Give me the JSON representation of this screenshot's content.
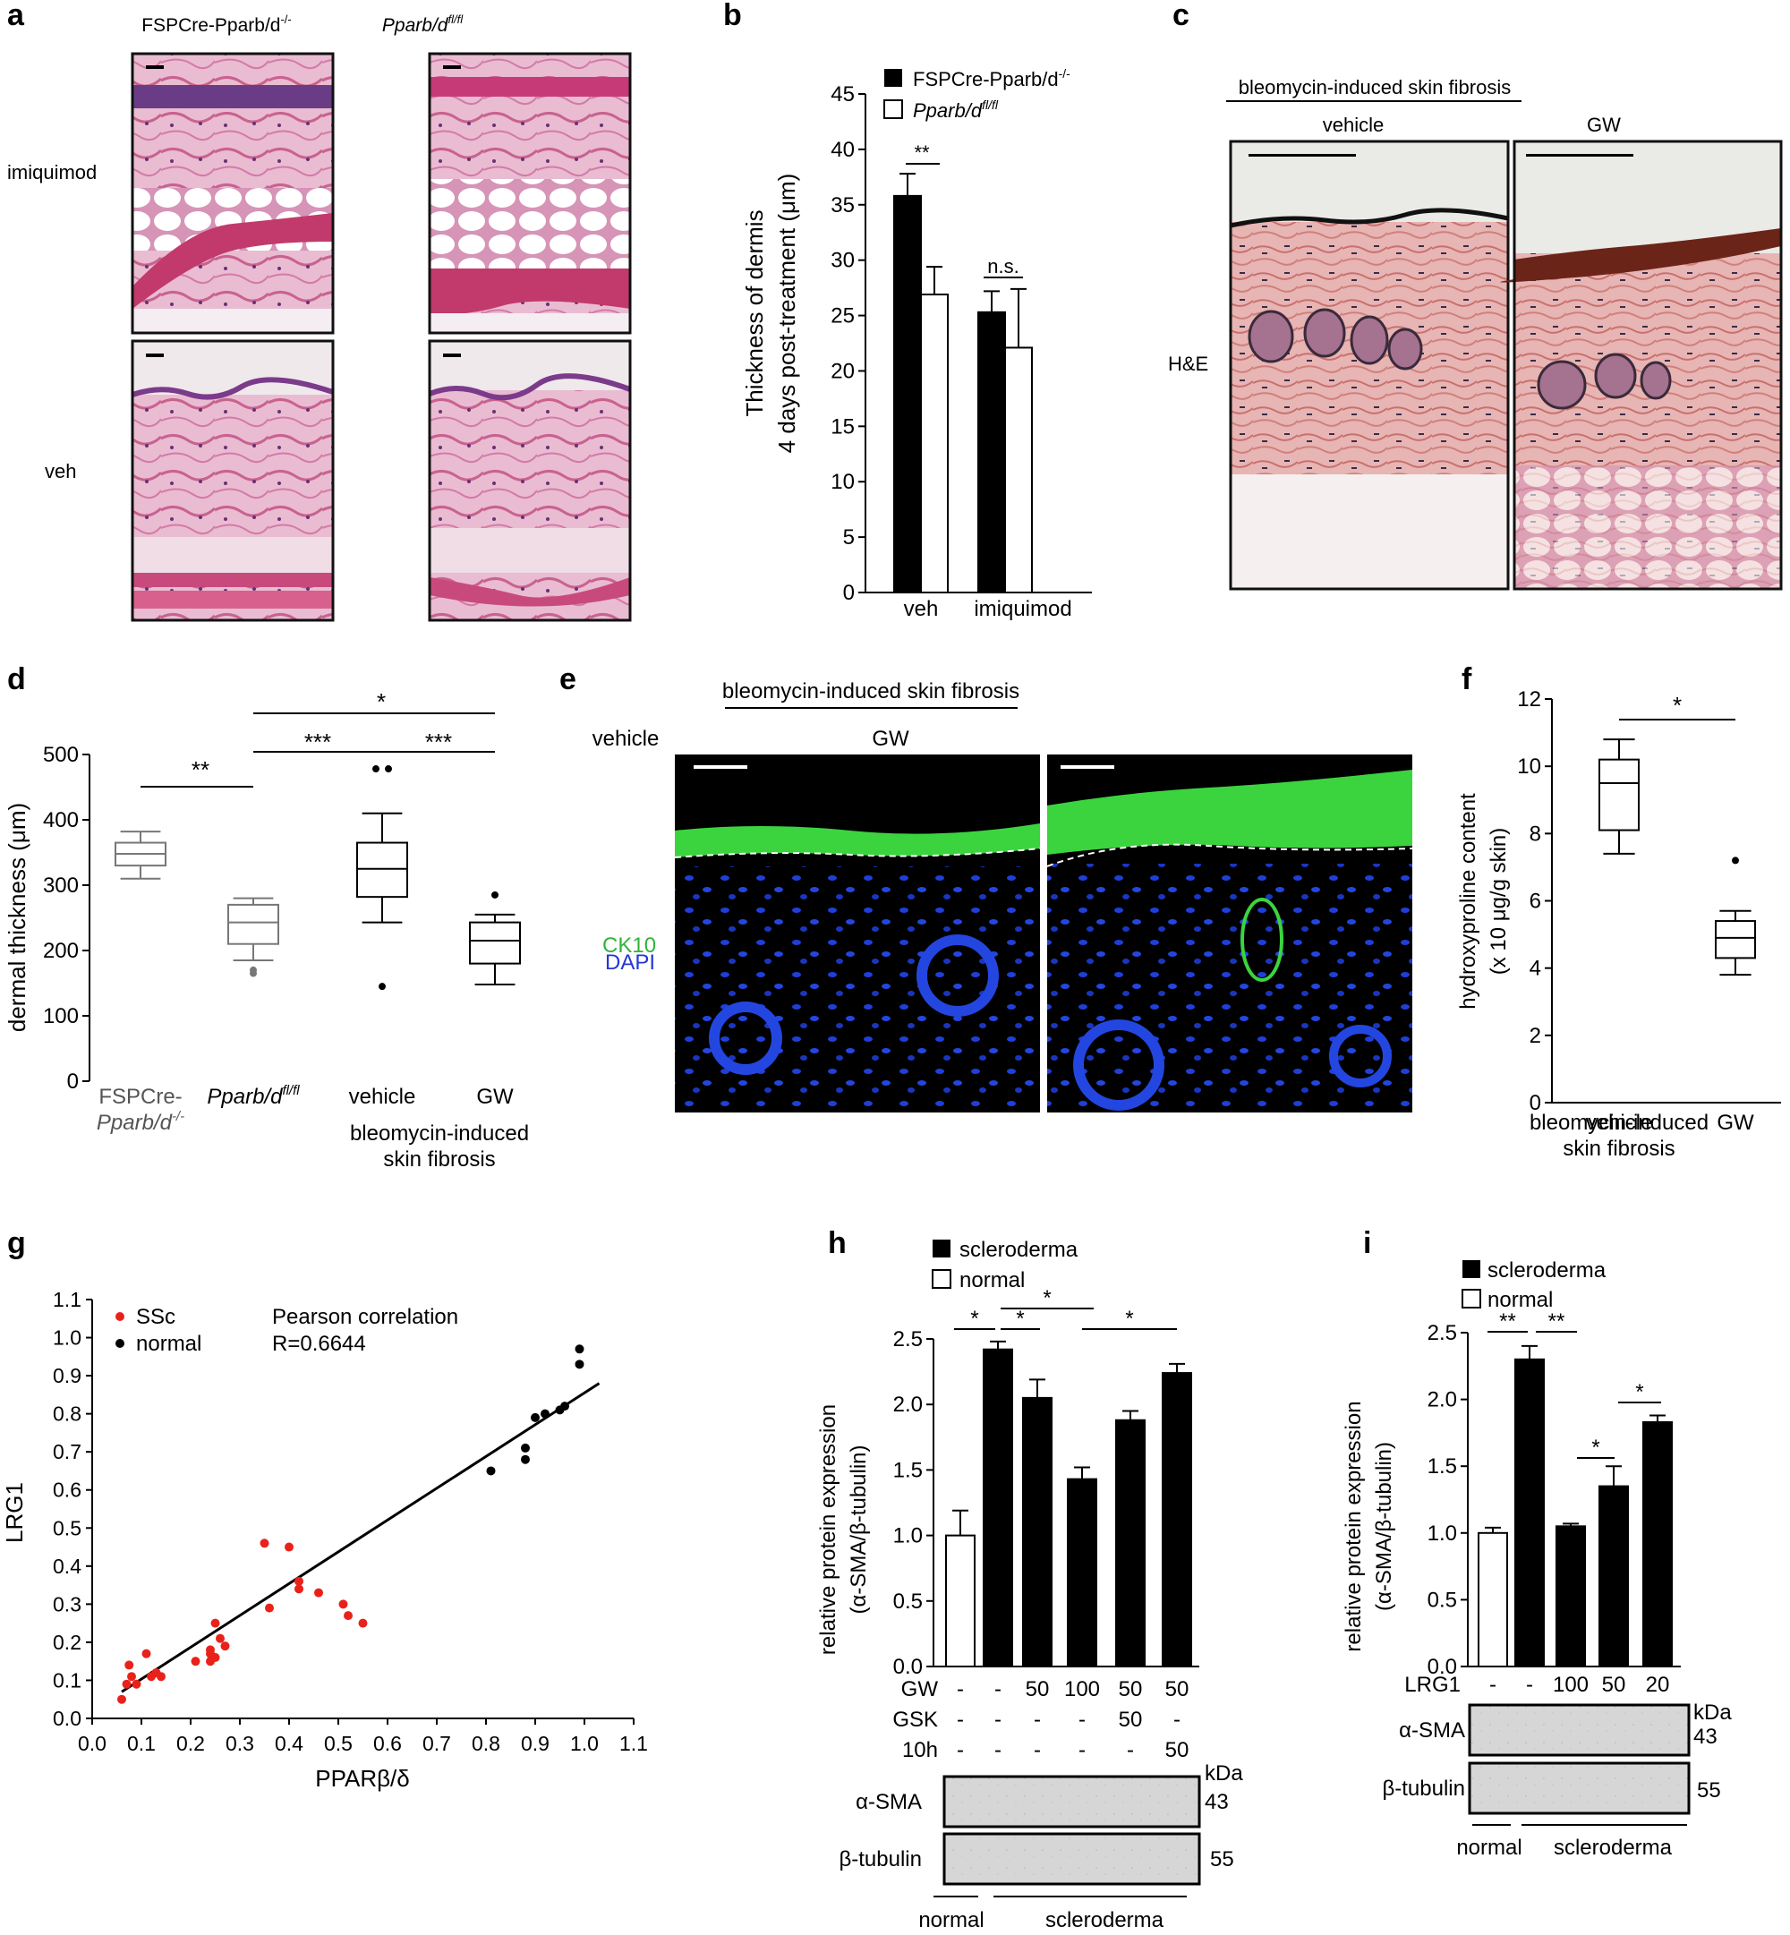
{
  "panels": {
    "a": {
      "letter": "a",
      "col_labels": [
        "FSPCre-Pparb/d",
        "Pparb/d"
      ],
      "col_sup": [
        "-/-",
        "fl/fl"
      ],
      "row_labels": [
        "imiquimod",
        "veh"
      ]
    },
    "b": {
      "letter": "b",
      "legend": [
        "FSPCre-Pparb/d",
        "Pparb/d"
      ],
      "legend_sup": [
        "-/-",
        "fl/fl"
      ],
      "annotations": [
        "**",
        "n.s."
      ]
    },
    "c": {
      "letter": "c",
      "title": "bleomycin-induced skin fibrosis",
      "col_labels": [
        "vehicle",
        "GW"
      ],
      "row_label": "H&E"
    },
    "d": {
      "letter": "d",
      "group_labels": [
        "FSPCre-",
        "Pparb/d",
        "Pparb/d",
        "vehicle",
        "GW"
      ],
      "group_sups": [
        "-/-",
        "fl/fl"
      ],
      "bottom_label": [
        "bleomycin-induced",
        "skin fibrosis"
      ],
      "sig": [
        "**",
        "***",
        "***",
        "*"
      ]
    },
    "e": {
      "letter": "e",
      "title": "bleomycin-induced skin fibrosis",
      "col_labels": [
        "vehicle",
        "GW"
      ],
      "stain_labels": [
        "CK10",
        "DAPI"
      ]
    },
    "f": {
      "letter": "f",
      "bottom_label": [
        "bleomycin-induced",
        "skin fibrosis"
      ],
      "sig": [
        "*"
      ]
    },
    "g": {
      "letter": "g",
      "legend": [
        "SSc",
        "normal"
      ],
      "annotation": [
        "Pearson correlation",
        "R=0.6644"
      ]
    },
    "h": {
      "letter": "h",
      "legend": [
        "scleroderma",
        "normal"
      ],
      "treat_rows": [
        {
          "name": "GW",
          "values": [
            "-",
            "-",
            "50",
            "100",
            "50",
            "50"
          ]
        },
        {
          "name": "GSK",
          "values": [
            "-",
            "-",
            "-",
            "-",
            "50",
            "-"
          ]
        },
        {
          "name": "10h",
          "values": [
            "-",
            "-",
            "-",
            "-",
            "-",
            "50"
          ]
        }
      ],
      "blots": [
        "α-SMA",
        "β-tubulin"
      ],
      "kda": [
        "kDa",
        "43",
        "55"
      ],
      "bottom": [
        "normal",
        "scleroderma"
      ],
      "sig": [
        "*",
        "*",
        "*",
        "*"
      ]
    },
    "i": {
      "letter": "i",
      "legend": [
        "scleroderma",
        "normal"
      ],
      "treat_rows": [
        {
          "name": "LRG1",
          "values": [
            "-",
            "-",
            "100",
            "50",
            "20"
          ]
        }
      ],
      "blots": [
        "α-SMA",
        "β-tubulin"
      ],
      "kda": [
        "kDa",
        "43",
        "55"
      ],
      "bottom": [
        "normal",
        "scleroderma"
      ],
      "sig": [
        "**",
        "**",
        "*",
        "*"
      ]
    }
  },
  "chart_data": [
    {
      "id": "b",
      "type": "bar",
      "ylabel": [
        "Thickness of dermis",
        "4 days post-treatment (μm)"
      ],
      "categories": [
        "veh",
        "imiquimod"
      ],
      "series": [
        {
          "name": "FSPCre-Pparb/d-/-",
          "values": [
            35.8,
            25.3
          ],
          "errors": [
            2.0,
            1.9
          ],
          "fill": "#000000"
        },
        {
          "name": "Pparb/dfl/fl",
          "values": [
            26.9,
            22.1
          ],
          "errors": [
            2.5,
            5.3
          ],
          "fill": "#ffffff"
        }
      ],
      "ylim": [
        0,
        45
      ],
      "yticks": [
        0,
        5,
        10,
        15,
        20,
        25,
        30,
        35,
        40,
        45
      ]
    },
    {
      "id": "d",
      "type": "box",
      "ylabel": "dermal thickness (μm)",
      "ylim": [
        0,
        500
      ],
      "yticks": [
        0,
        100,
        200,
        300,
        400,
        500
      ],
      "boxes": [
        {
          "q1": 330,
          "median": 348,
          "q3": 365,
          "whisker_low": 310,
          "whisker_high": 382,
          "outliers": [],
          "color": "#777777"
        },
        {
          "q1": 210,
          "median": 243,
          "q3": 270,
          "whisker_low": 185,
          "whisker_high": 280,
          "outliers": [
            165,
            170
          ],
          "color": "#777777"
        },
        {
          "q1": 282,
          "median": 325,
          "q3": 365,
          "whisker_low": 243,
          "whisker_high": 410,
          "outliers": [
            478,
            478,
            145
          ],
          "color": "#000000"
        },
        {
          "q1": 180,
          "median": 215,
          "q3": 243,
          "whisker_low": 148,
          "whisker_high": 255,
          "outliers": [
            285
          ],
          "color": "#000000"
        }
      ]
    },
    {
      "id": "f",
      "type": "box",
      "ylabel": [
        "hydroxyproline content",
        "(x 10 μg/g skin)"
      ],
      "categories": [
        "vehicle",
        "GW"
      ],
      "ylim": [
        0,
        12
      ],
      "yticks": [
        0,
        2,
        4,
        6,
        8,
        10,
        12
      ],
      "boxes": [
        {
          "q1": 8.1,
          "median": 9.5,
          "q3": 10.2,
          "whisker_low": 7.4,
          "whisker_high": 10.8,
          "outliers": []
        },
        {
          "q1": 4.3,
          "median": 4.9,
          "q3": 5.4,
          "whisker_low": 3.8,
          "whisker_high": 5.7,
          "outliers": [
            7.2
          ]
        }
      ]
    },
    {
      "id": "g",
      "type": "scatter",
      "xlabel": "PPARβ/δ",
      "ylabel": "LRG1",
      "xlim": [
        0,
        1.1
      ],
      "ylim": [
        0,
        1.1
      ],
      "xticks": [
        0.0,
        0.1,
        0.2,
        0.3,
        0.4,
        0.5,
        0.6,
        0.7,
        0.8,
        0.9,
        1.0,
        1.1
      ],
      "yticks": [
        0.0,
        0.1,
        0.2,
        0.3,
        0.4,
        0.5,
        0.6,
        0.7,
        0.8,
        0.9,
        1.0,
        1.1
      ],
      "series": [
        {
          "name": "SSc",
          "color": "#e8221b",
          "points": [
            [
              0.06,
              0.05
            ],
            [
              0.07,
              0.09
            ],
            [
              0.075,
              0.14
            ],
            [
              0.08,
              0.11
            ],
            [
              0.09,
              0.09
            ],
            [
              0.11,
              0.17
            ],
            [
              0.12,
              0.11
            ],
            [
              0.13,
              0.12
            ],
            [
              0.14,
              0.11
            ],
            [
              0.21,
              0.15
            ],
            [
              0.24,
              0.15
            ],
            [
              0.24,
              0.17
            ],
            [
              0.24,
              0.18
            ],
            [
              0.25,
              0.25
            ],
            [
              0.25,
              0.16
            ],
            [
              0.26,
              0.21
            ],
            [
              0.27,
              0.19
            ],
            [
              0.35,
              0.46
            ],
            [
              0.36,
              0.29
            ],
            [
              0.4,
              0.45
            ],
            [
              0.42,
              0.36
            ],
            [
              0.42,
              0.34
            ],
            [
              0.46,
              0.33
            ],
            [
              0.51,
              0.3
            ],
            [
              0.52,
              0.27
            ],
            [
              0.55,
              0.25
            ]
          ]
        },
        {
          "name": "normal",
          "color": "#000000",
          "points": [
            [
              0.81,
              0.65
            ],
            [
              0.88,
              0.71
            ],
            [
              0.88,
              0.68
            ],
            [
              0.9,
              0.79
            ],
            [
              0.92,
              0.8
            ],
            [
              0.95,
              0.81
            ],
            [
              0.96,
              0.82
            ],
            [
              0.99,
              0.97
            ],
            [
              0.99,
              0.93
            ]
          ]
        }
      ],
      "fit_line": [
        [
          0.06,
          0.07
        ],
        [
          1.03,
          0.88
        ]
      ]
    },
    {
      "id": "h",
      "type": "bar",
      "ylabel": [
        "relative protein expression",
        "(α-SMA/β-tubulin)"
      ],
      "ylim": [
        0,
        2.5
      ],
      "yticks": [
        0.0,
        0.5,
        1.0,
        1.5,
        2.0,
        2.5
      ],
      "values": [
        1.0,
        2.42,
        2.05,
        1.43,
        1.88,
        2.24
      ],
      "errors": [
        0.19,
        0.06,
        0.14,
        0.09,
        0.07,
        0.07
      ],
      "fills": [
        "#ffffff",
        "#000000",
        "#000000",
        "#000000",
        "#000000",
        "#000000"
      ]
    },
    {
      "id": "i",
      "type": "bar",
      "ylabel": [
        "relative protein expression",
        "(α-SMA/β-tubulin)"
      ],
      "ylim": [
        0,
        2.5
      ],
      "yticks": [
        0.0,
        0.5,
        1.0,
        1.5,
        2.0,
        2.5
      ],
      "values": [
        1.0,
        2.3,
        1.05,
        1.35,
        1.83
      ],
      "errors": [
        0.04,
        0.1,
        0.02,
        0.15,
        0.05
      ],
      "fills": [
        "#ffffff",
        "#000000",
        "#000000",
        "#000000",
        "#000000"
      ]
    }
  ]
}
